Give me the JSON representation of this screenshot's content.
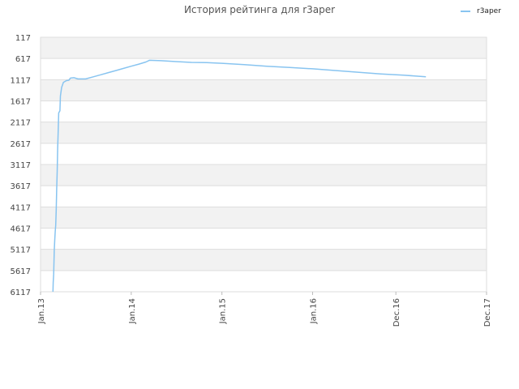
{
  "chart_data": {
    "type": "line",
    "title": "История рейтинга для r3aper",
    "xlabel": "",
    "ylabel": "",
    "y_reversed": true,
    "ylim": [
      117,
      6117
    ],
    "y_ticks": [
      117,
      617,
      1117,
      1617,
      2117,
      2617,
      3117,
      3617,
      4117,
      4617,
      5117,
      5617,
      6117
    ],
    "x_range": [
      "2013-01-01",
      "2017-12-01"
    ],
    "x_ticks": [
      {
        "date": "2013-01-01",
        "label": "Jan.13"
      },
      {
        "date": "2014-01-01",
        "label": "Jan.14"
      },
      {
        "date": "2015-01-01",
        "label": "Jan.15"
      },
      {
        "date": "2016-01-01",
        "label": "Jan.16"
      },
      {
        "date": "2016-12-01",
        "label": "Dec.16"
      },
      {
        "date": "2017-12-01",
        "label": "Dec.17"
      }
    ],
    "grid": true,
    "legend_position": "top-right",
    "series": [
      {
        "name": "r3aper",
        "color": "#88c4f0",
        "points": [
          [
            "2013-02-20",
            6117
          ],
          [
            "2013-02-21",
            5900
          ],
          [
            "2013-02-23",
            5700
          ],
          [
            "2013-02-25",
            5150
          ],
          [
            "2013-02-27",
            4900
          ],
          [
            "2013-03-01",
            4700
          ],
          [
            "2013-03-03",
            4550
          ],
          [
            "2013-03-05",
            4200
          ],
          [
            "2013-03-07",
            3700
          ],
          [
            "2013-03-09",
            3300
          ],
          [
            "2013-03-11",
            2750
          ],
          [
            "2013-03-13",
            2300
          ],
          [
            "2013-03-15",
            1900
          ],
          [
            "2013-03-20",
            1850
          ],
          [
            "2013-03-22",
            1500
          ],
          [
            "2013-03-27",
            1300
          ],
          [
            "2013-04-03",
            1180
          ],
          [
            "2013-04-15",
            1140
          ],
          [
            "2013-04-25",
            1130
          ],
          [
            "2013-05-01",
            1080
          ],
          [
            "2013-05-15",
            1070
          ],
          [
            "2013-06-01",
            1100
          ],
          [
            "2013-07-01",
            1100
          ],
          [
            "2013-08-01",
            1050
          ],
          [
            "2013-09-01",
            1000
          ],
          [
            "2013-10-01",
            950
          ],
          [
            "2013-11-01",
            900
          ],
          [
            "2013-12-01",
            850
          ],
          [
            "2014-01-01",
            800
          ],
          [
            "2014-02-01",
            750
          ],
          [
            "2014-03-01",
            700
          ],
          [
            "2014-03-15",
            660
          ],
          [
            "2014-05-01",
            670
          ],
          [
            "2014-07-01",
            690
          ],
          [
            "2014-09-01",
            710
          ],
          [
            "2014-11-01",
            715
          ],
          [
            "2015-01-01",
            730
          ],
          [
            "2015-04-01",
            760
          ],
          [
            "2015-07-01",
            800
          ],
          [
            "2015-10-01",
            830
          ],
          [
            "2016-01-01",
            860
          ],
          [
            "2016-04-01",
            900
          ],
          [
            "2016-07-01",
            940
          ],
          [
            "2016-10-01",
            980
          ],
          [
            "2017-01-01",
            1010
          ],
          [
            "2017-04-01",
            1050
          ]
        ]
      }
    ]
  }
}
